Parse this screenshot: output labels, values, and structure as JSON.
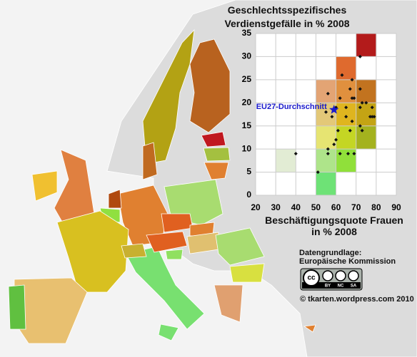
{
  "chart_data": {
    "type": "scatter",
    "title": "Geschlechtsspezifisches Verdienstgefälle in % 2008",
    "x_label": "Beschäftigungsquote Frauen in % 2008",
    "xlim": [
      20,
      90
    ],
    "xticks": [
      20,
      30,
      40,
      50,
      60,
      70,
      80,
      90
    ],
    "ylim": [
      0,
      35
    ],
    "yticks": [
      0,
      5,
      10,
      15,
      20,
      25,
      30,
      35
    ],
    "grid": true,
    "point_color": "#111111",
    "x": [
      72,
      63,
      68,
      67,
      72,
      56,
      62,
      68,
      69,
      73,
      75,
      60,
      65,
      72,
      78,
      55,
      58,
      65,
      77,
      78,
      79,
      68,
      72,
      61,
      67,
      73,
      60,
      59,
      56,
      56,
      62,
      66,
      40,
      69,
      51
    ],
    "values": [
      30,
      26,
      25,
      23,
      23,
      22,
      21,
      21,
      21,
      20,
      20,
      19,
      19,
      19,
      19,
      18,
      17,
      17,
      17,
      17,
      17,
      16,
      15,
      14,
      14,
      14,
      12,
      11,
      10,
      9,
      9,
      9,
      9,
      9,
      5
    ],
    "average": {
      "label": "EU27-Durchschnitt",
      "x": 59,
      "value": 18.5,
      "color": "#1a1acc"
    },
    "cells": [
      {
        "x": 70,
        "y": 30,
        "color": "#b31b1b"
      },
      {
        "x": 60,
        "y": 25,
        "color": "#df6a2e"
      },
      {
        "x": 50,
        "y": 20,
        "color": "#e3a474"
      },
      {
        "x": 60,
        "y": 20,
        "color": "#e0903e"
      },
      {
        "x": 70,
        "y": 20,
        "color": "#c2731f"
      },
      {
        "x": 50,
        "y": 15,
        "color": "#e3c878"
      },
      {
        "x": 60,
        "y": 15,
        "color": "#dfb51f"
      },
      {
        "x": 70,
        "y": 15,
        "color": "#c4a414"
      },
      {
        "x": 50,
        "y": 10,
        "color": "#e6e472"
      },
      {
        "x": 60,
        "y": 10,
        "color": "#c4d624"
      },
      {
        "x": 70,
        "y": 10,
        "color": "#a4b21e"
      },
      {
        "x": 30,
        "y": 5,
        "color": "#e2ecd4"
      },
      {
        "x": 50,
        "y": 5,
        "color": "#aee48a"
      },
      {
        "x": 60,
        "y": 5,
        "color": "#90e03a"
      },
      {
        "x": 50,
        "y": 0,
        "color": "#6ee276"
      }
    ],
    "cell_width": 10,
    "cell_height": 5,
    "source": "Datengrundlage: Europäische Kommission",
    "license": [
      "cc",
      "BY",
      "NC",
      "SA"
    ],
    "copyright": "© tkarten.wordpress.com 2010"
  }
}
